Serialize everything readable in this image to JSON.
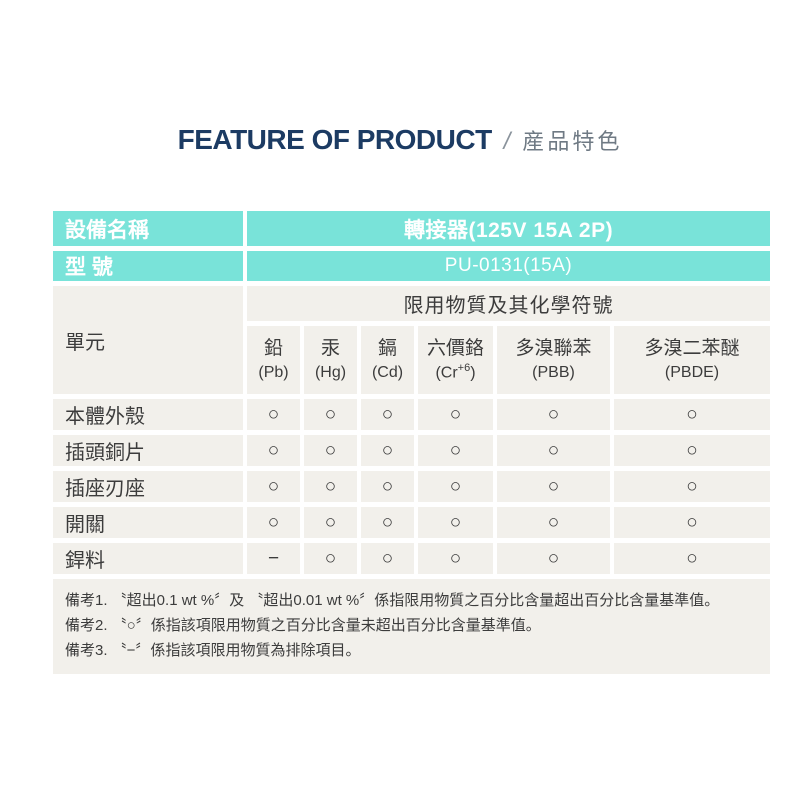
{
  "page": {
    "title_en": "FEATURE OF PRODUCT",
    "title_divider": "/",
    "title_zh": "産品特色"
  },
  "spec_table": {
    "device_label": "設備名稱",
    "device_value": "轉接器(125V 15A 2P)",
    "model_label": "型 號",
    "model_value": "PU-0131(15A)",
    "unit_label": "單元",
    "substances_header": "限用物質及其化學符號",
    "columns": [
      {
        "name": "鉛",
        "sym_pre": "(Pb)",
        "sym_sup": "",
        "sym_post": ""
      },
      {
        "name": "汞",
        "sym_pre": "(Hg)",
        "sym_sup": "",
        "sym_post": ""
      },
      {
        "name": "鎘",
        "sym_pre": "(Cd)",
        "sym_sup": "",
        "sym_post": ""
      },
      {
        "name": "六價鉻",
        "sym_pre": "(Cr",
        "sym_sup": "+6",
        "sym_post": ")"
      },
      {
        "name": "多溴聯苯",
        "sym_pre": "(PBB)",
        "sym_sup": "",
        "sym_post": ""
      },
      {
        "name": "多溴二苯醚",
        "sym_pre": "(PBDE)",
        "sym_sup": "",
        "sym_post": ""
      }
    ],
    "rows": [
      {
        "part": "本體外殼",
        "values": [
          "○",
          "○",
          "○",
          "○",
          "○",
          "○"
        ]
      },
      {
        "part": "插頭銅片",
        "values": [
          "○",
          "○",
          "○",
          "○",
          "○",
          "○"
        ]
      },
      {
        "part": "插座刃座",
        "values": [
          "○",
          "○",
          "○",
          "○",
          "○",
          "○"
        ]
      },
      {
        "part": "開關",
        "values": [
          "○",
          "○",
          "○",
          "○",
          "○",
          "○"
        ]
      },
      {
        "part": "銲料",
        "values": [
          "−",
          "○",
          "○",
          "○",
          "○",
          "○"
        ]
      }
    ],
    "notes": [
      "備考1. 〝超出0.1 wt %〞及 〝超出0.01 wt %〞係指限用物質之百分比含量超出百分比含量基準值。",
      "備考2. 〝○〞係指該項限用物質之百分比含量未超出百分比含量基準值。",
      "備考3. 〝−〞係指該項限用物質為排除項目。"
    ]
  },
  "colors": {
    "accent_teal": "#79e3d9",
    "cell_beige": "#f2f0eb",
    "title_navy": "#1c3b63",
    "title_gray": "#6f7a84",
    "text_dark": "#3c3c3c"
  }
}
